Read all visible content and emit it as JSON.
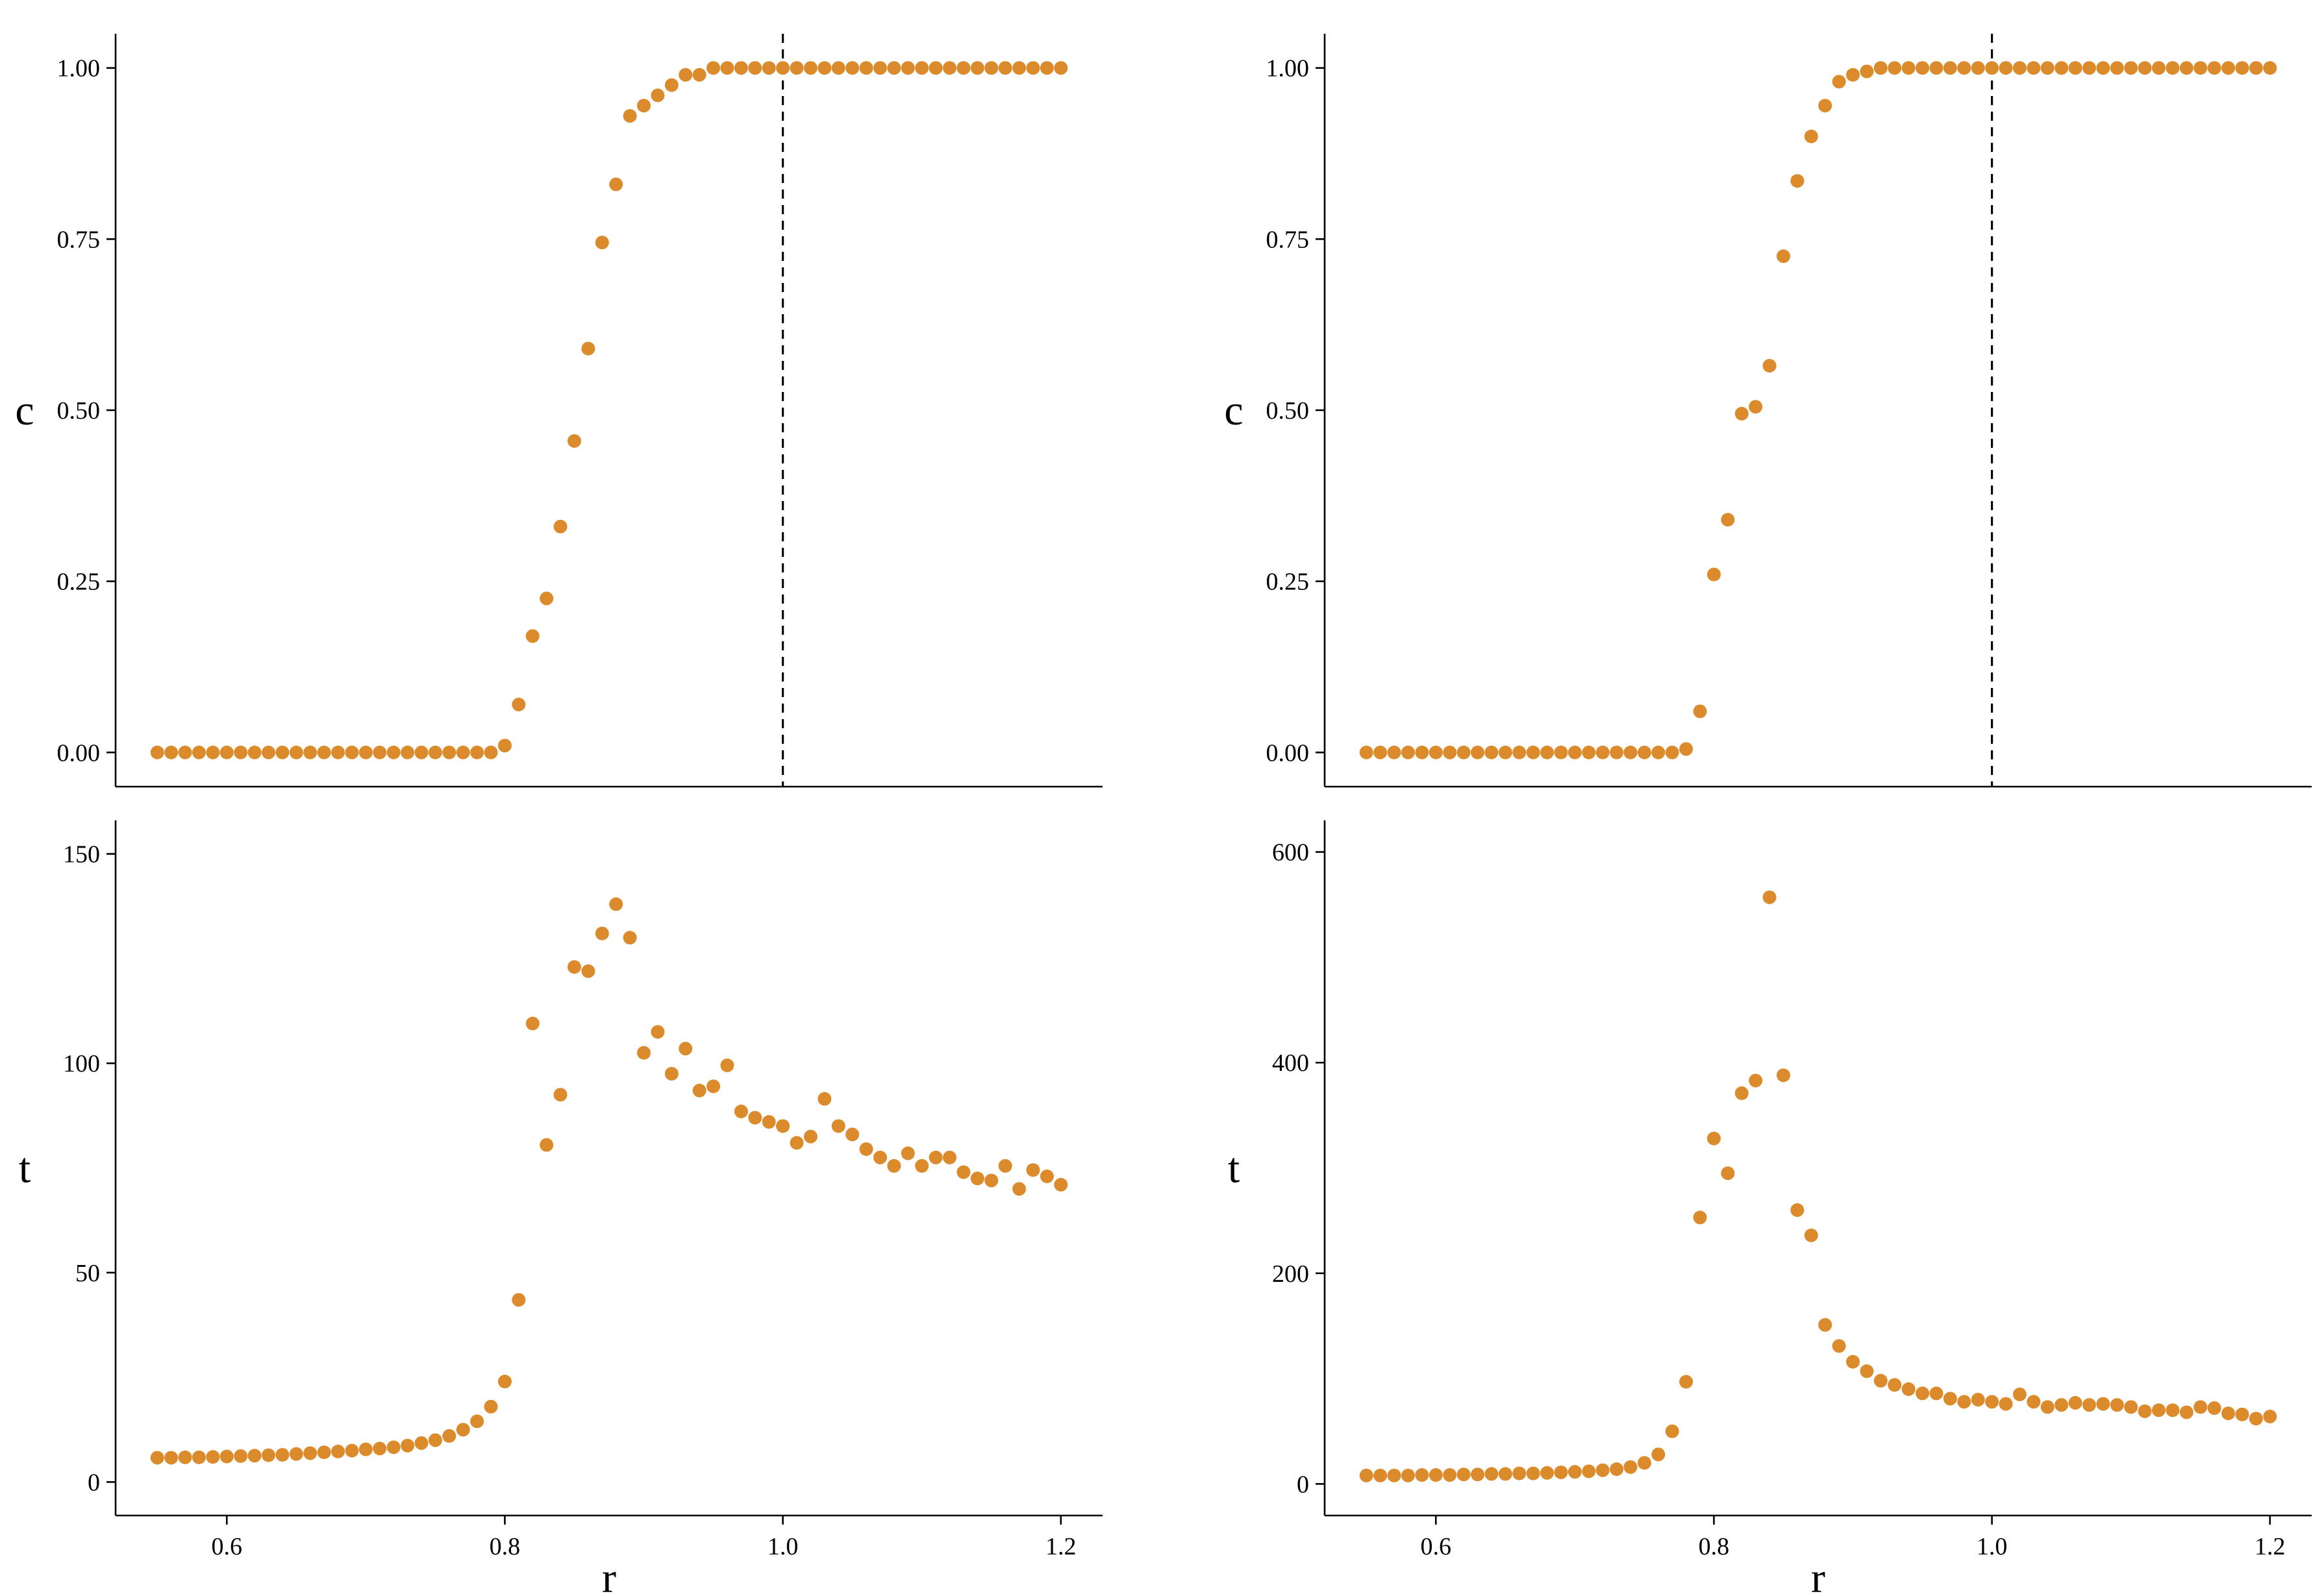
{
  "figure": {
    "marker_color": "#db8b2b"
  },
  "chart_data": [
    {
      "id": "top-left",
      "type": "scatter",
      "xlabel": "r",
      "ylabel": "c",
      "xlim": [
        0.52,
        1.23
      ],
      "ylim": [
        -0.05,
        1.05
      ],
      "yticks": [
        0.0,
        0.25,
        0.5,
        0.75,
        1.0
      ],
      "ytick_labels": [
        "0.00",
        "0.25",
        "0.50",
        "0.75",
        "1.00"
      ],
      "xticks": [],
      "xtick_labels": [],
      "vline": 1.0,
      "x": [
        0.55,
        0.56,
        0.57,
        0.58,
        0.59,
        0.6,
        0.61,
        0.62,
        0.63,
        0.64,
        0.65,
        0.66,
        0.67,
        0.68,
        0.69,
        0.7,
        0.71,
        0.72,
        0.73,
        0.74,
        0.75,
        0.76,
        0.77,
        0.78,
        0.79,
        0.8,
        0.81,
        0.82,
        0.83,
        0.84,
        0.85,
        0.86,
        0.87,
        0.88,
        0.89,
        0.9,
        0.91,
        0.92,
        0.93,
        0.94,
        0.95,
        0.96,
        0.97,
        0.98,
        0.99,
        1.0,
        1.01,
        1.02,
        1.03,
        1.04,
        1.05,
        1.06,
        1.07,
        1.08,
        1.09,
        1.1,
        1.11,
        1.12,
        1.13,
        1.14,
        1.15,
        1.16,
        1.17,
        1.18,
        1.19,
        1.2
      ],
      "y": [
        0,
        0,
        0,
        0,
        0,
        0,
        0,
        0,
        0,
        0,
        0,
        0,
        0,
        0,
        0,
        0,
        0,
        0,
        0,
        0,
        0,
        0,
        0,
        0,
        0,
        0.01,
        0.07,
        0.17,
        0.225,
        0.33,
        0.455,
        0.59,
        0.745,
        0.83,
        0.93,
        0.945,
        0.96,
        0.975,
        0.99,
        0.99,
        1,
        1,
        1,
        1,
        1,
        1,
        1,
        1,
        1,
        1,
        1,
        1,
        1,
        1,
        1,
        1,
        1,
        1,
        1,
        1,
        1,
        1,
        1,
        1,
        1,
        1
      ]
    },
    {
      "id": "top-right",
      "type": "scatter",
      "xlabel": "r",
      "ylabel": "c",
      "xlim": [
        0.52,
        1.23
      ],
      "ylim": [
        -0.05,
        1.05
      ],
      "yticks": [
        0.0,
        0.25,
        0.5,
        0.75,
        1.0
      ],
      "ytick_labels": [
        "0.00",
        "0.25",
        "0.50",
        "0.75",
        "1.00"
      ],
      "xticks": [],
      "xtick_labels": [],
      "vline": 1.0,
      "x": [
        0.55,
        0.56,
        0.57,
        0.58,
        0.59,
        0.6,
        0.61,
        0.62,
        0.63,
        0.64,
        0.65,
        0.66,
        0.67,
        0.68,
        0.69,
        0.7,
        0.71,
        0.72,
        0.73,
        0.74,
        0.75,
        0.76,
        0.77,
        0.78,
        0.79,
        0.8,
        0.81,
        0.82,
        0.83,
        0.84,
        0.85,
        0.86,
        0.87,
        0.88,
        0.89,
        0.9,
        0.91,
        0.92,
        0.93,
        0.94,
        0.95,
        0.96,
        0.97,
        0.98,
        0.99,
        1.0,
        1.01,
        1.02,
        1.03,
        1.04,
        1.05,
        1.06,
        1.07,
        1.08,
        1.09,
        1.1,
        1.11,
        1.12,
        1.13,
        1.14,
        1.15,
        1.16,
        1.17,
        1.18,
        1.19,
        1.2
      ],
      "y": [
        0,
        0,
        0,
        0,
        0,
        0,
        0,
        0,
        0,
        0,
        0,
        0,
        0,
        0,
        0,
        0,
        0,
        0,
        0,
        0,
        0,
        0,
        0,
        0.005,
        0.06,
        0.26,
        0.34,
        0.495,
        0.505,
        0.565,
        0.725,
        0.835,
        0.9,
        0.945,
        0.98,
        0.99,
        0.995,
        1,
        1,
        1,
        1,
        1,
        1,
        1,
        1,
        1,
        1,
        1,
        1,
        1,
        1,
        1,
        1,
        1,
        1,
        1,
        1,
        1,
        1,
        1,
        1,
        1,
        1,
        1,
        1,
        1
      ]
    },
    {
      "id": "bottom-left",
      "type": "scatter",
      "xlabel": "r",
      "ylabel": "t",
      "xlim": [
        0.52,
        1.23
      ],
      "ylim": [
        -8,
        158
      ],
      "yticks": [
        0,
        50,
        100,
        150
      ],
      "ytick_labels": [
        "0",
        "50",
        "100",
        "150"
      ],
      "xticks": [
        0.6,
        0.8,
        1.0,
        1.2
      ],
      "xtick_labels": [
        "0.6",
        "0.8",
        "1.0",
        "1.2"
      ],
      "x": [
        0.55,
        0.56,
        0.57,
        0.58,
        0.59,
        0.6,
        0.61,
        0.62,
        0.63,
        0.64,
        0.65,
        0.66,
        0.67,
        0.68,
        0.69,
        0.7,
        0.71,
        0.72,
        0.73,
        0.74,
        0.75,
        0.76,
        0.77,
        0.78,
        0.79,
        0.8,
        0.81,
        0.82,
        0.83,
        0.84,
        0.85,
        0.86,
        0.87,
        0.88,
        0.89,
        0.9,
        0.91,
        0.92,
        0.93,
        0.94,
        0.95,
        0.96,
        0.97,
        0.98,
        0.99,
        1.0,
        1.01,
        1.02,
        1.03,
        1.04,
        1.05,
        1.06,
        1.07,
        1.08,
        1.09,
        1.1,
        1.11,
        1.12,
        1.13,
        1.14,
        1.15,
        1.16,
        1.17,
        1.18,
        1.19,
        1.2
      ],
      "y": [
        5.8,
        5.8,
        5.9,
        5.9,
        6.0,
        6.1,
        6.2,
        6.3,
        6.4,
        6.5,
        6.7,
        6.9,
        7.1,
        7.3,
        7.5,
        7.8,
        8.0,
        8.3,
        8.7,
        9.3,
        10,
        11,
        12.5,
        14.5,
        18,
        24,
        43.5,
        109.5,
        80.5,
        92.5,
        123,
        122,
        131,
        138,
        130,
        102.5,
        107.5,
        97.5,
        103.5,
        93.5,
        94.5,
        99.5,
        88.5,
        87,
        86,
        85,
        81,
        82.5,
        91.5,
        85,
        83,
        79.5,
        77.5,
        75.5,
        78.5,
        75.5,
        77.5,
        77.5,
        74,
        72.5,
        72,
        75.5,
        70,
        74.5,
        73,
        71
      ]
    },
    {
      "id": "bottom-right",
      "type": "scatter",
      "xlabel": "r",
      "ylabel": "t",
      "xlim": [
        0.52,
        1.23
      ],
      "ylim": [
        -30,
        630
      ],
      "yticks": [
        0,
        200,
        400,
        600
      ],
      "ytick_labels": [
        "0",
        "200",
        "400",
        "600"
      ],
      "xticks": [
        0.6,
        0.8,
        1.0,
        1.2
      ],
      "xtick_labels": [
        "0.6",
        "0.8",
        "1.0",
        "1.2"
      ],
      "x": [
        0.55,
        0.56,
        0.57,
        0.58,
        0.59,
        0.6,
        0.61,
        0.62,
        0.63,
        0.64,
        0.65,
        0.66,
        0.67,
        0.68,
        0.69,
        0.7,
        0.71,
        0.72,
        0.73,
        0.74,
        0.75,
        0.76,
        0.77,
        0.78,
        0.79,
        0.8,
        0.81,
        0.82,
        0.83,
        0.84,
        0.85,
        0.86,
        0.87,
        0.88,
        0.89,
        0.9,
        0.91,
        0.92,
        0.93,
        0.94,
        0.95,
        0.96,
        0.97,
        0.98,
        0.99,
        1.0,
        1.01,
        1.02,
        1.03,
        1.04,
        1.05,
        1.06,
        1.07,
        1.08,
        1.09,
        1.1,
        1.11,
        1.12,
        1.13,
        1.14,
        1.15,
        1.16,
        1.17,
        1.18,
        1.19,
        1.2
      ],
      "y": [
        8,
        8,
        8,
        8,
        8.5,
        8.5,
        8.5,
        9,
        9,
        9.5,
        9.5,
        10,
        10,
        10.5,
        11,
        11.5,
        12,
        13,
        14,
        16,
        20,
        28,
        50,
        97,
        253,
        328,
        295,
        371,
        383,
        557,
        388,
        260,
        236,
        151,
        131,
        116,
        107,
        98,
        94,
        90,
        86,
        86,
        81,
        78,
        80,
        78,
        76,
        85,
        78,
        73,
        75,
        77,
        75,
        76,
        75,
        73,
        69,
        70,
        70,
        68,
        73,
        72,
        67,
        66,
        62,
        64
      ]
    }
  ]
}
